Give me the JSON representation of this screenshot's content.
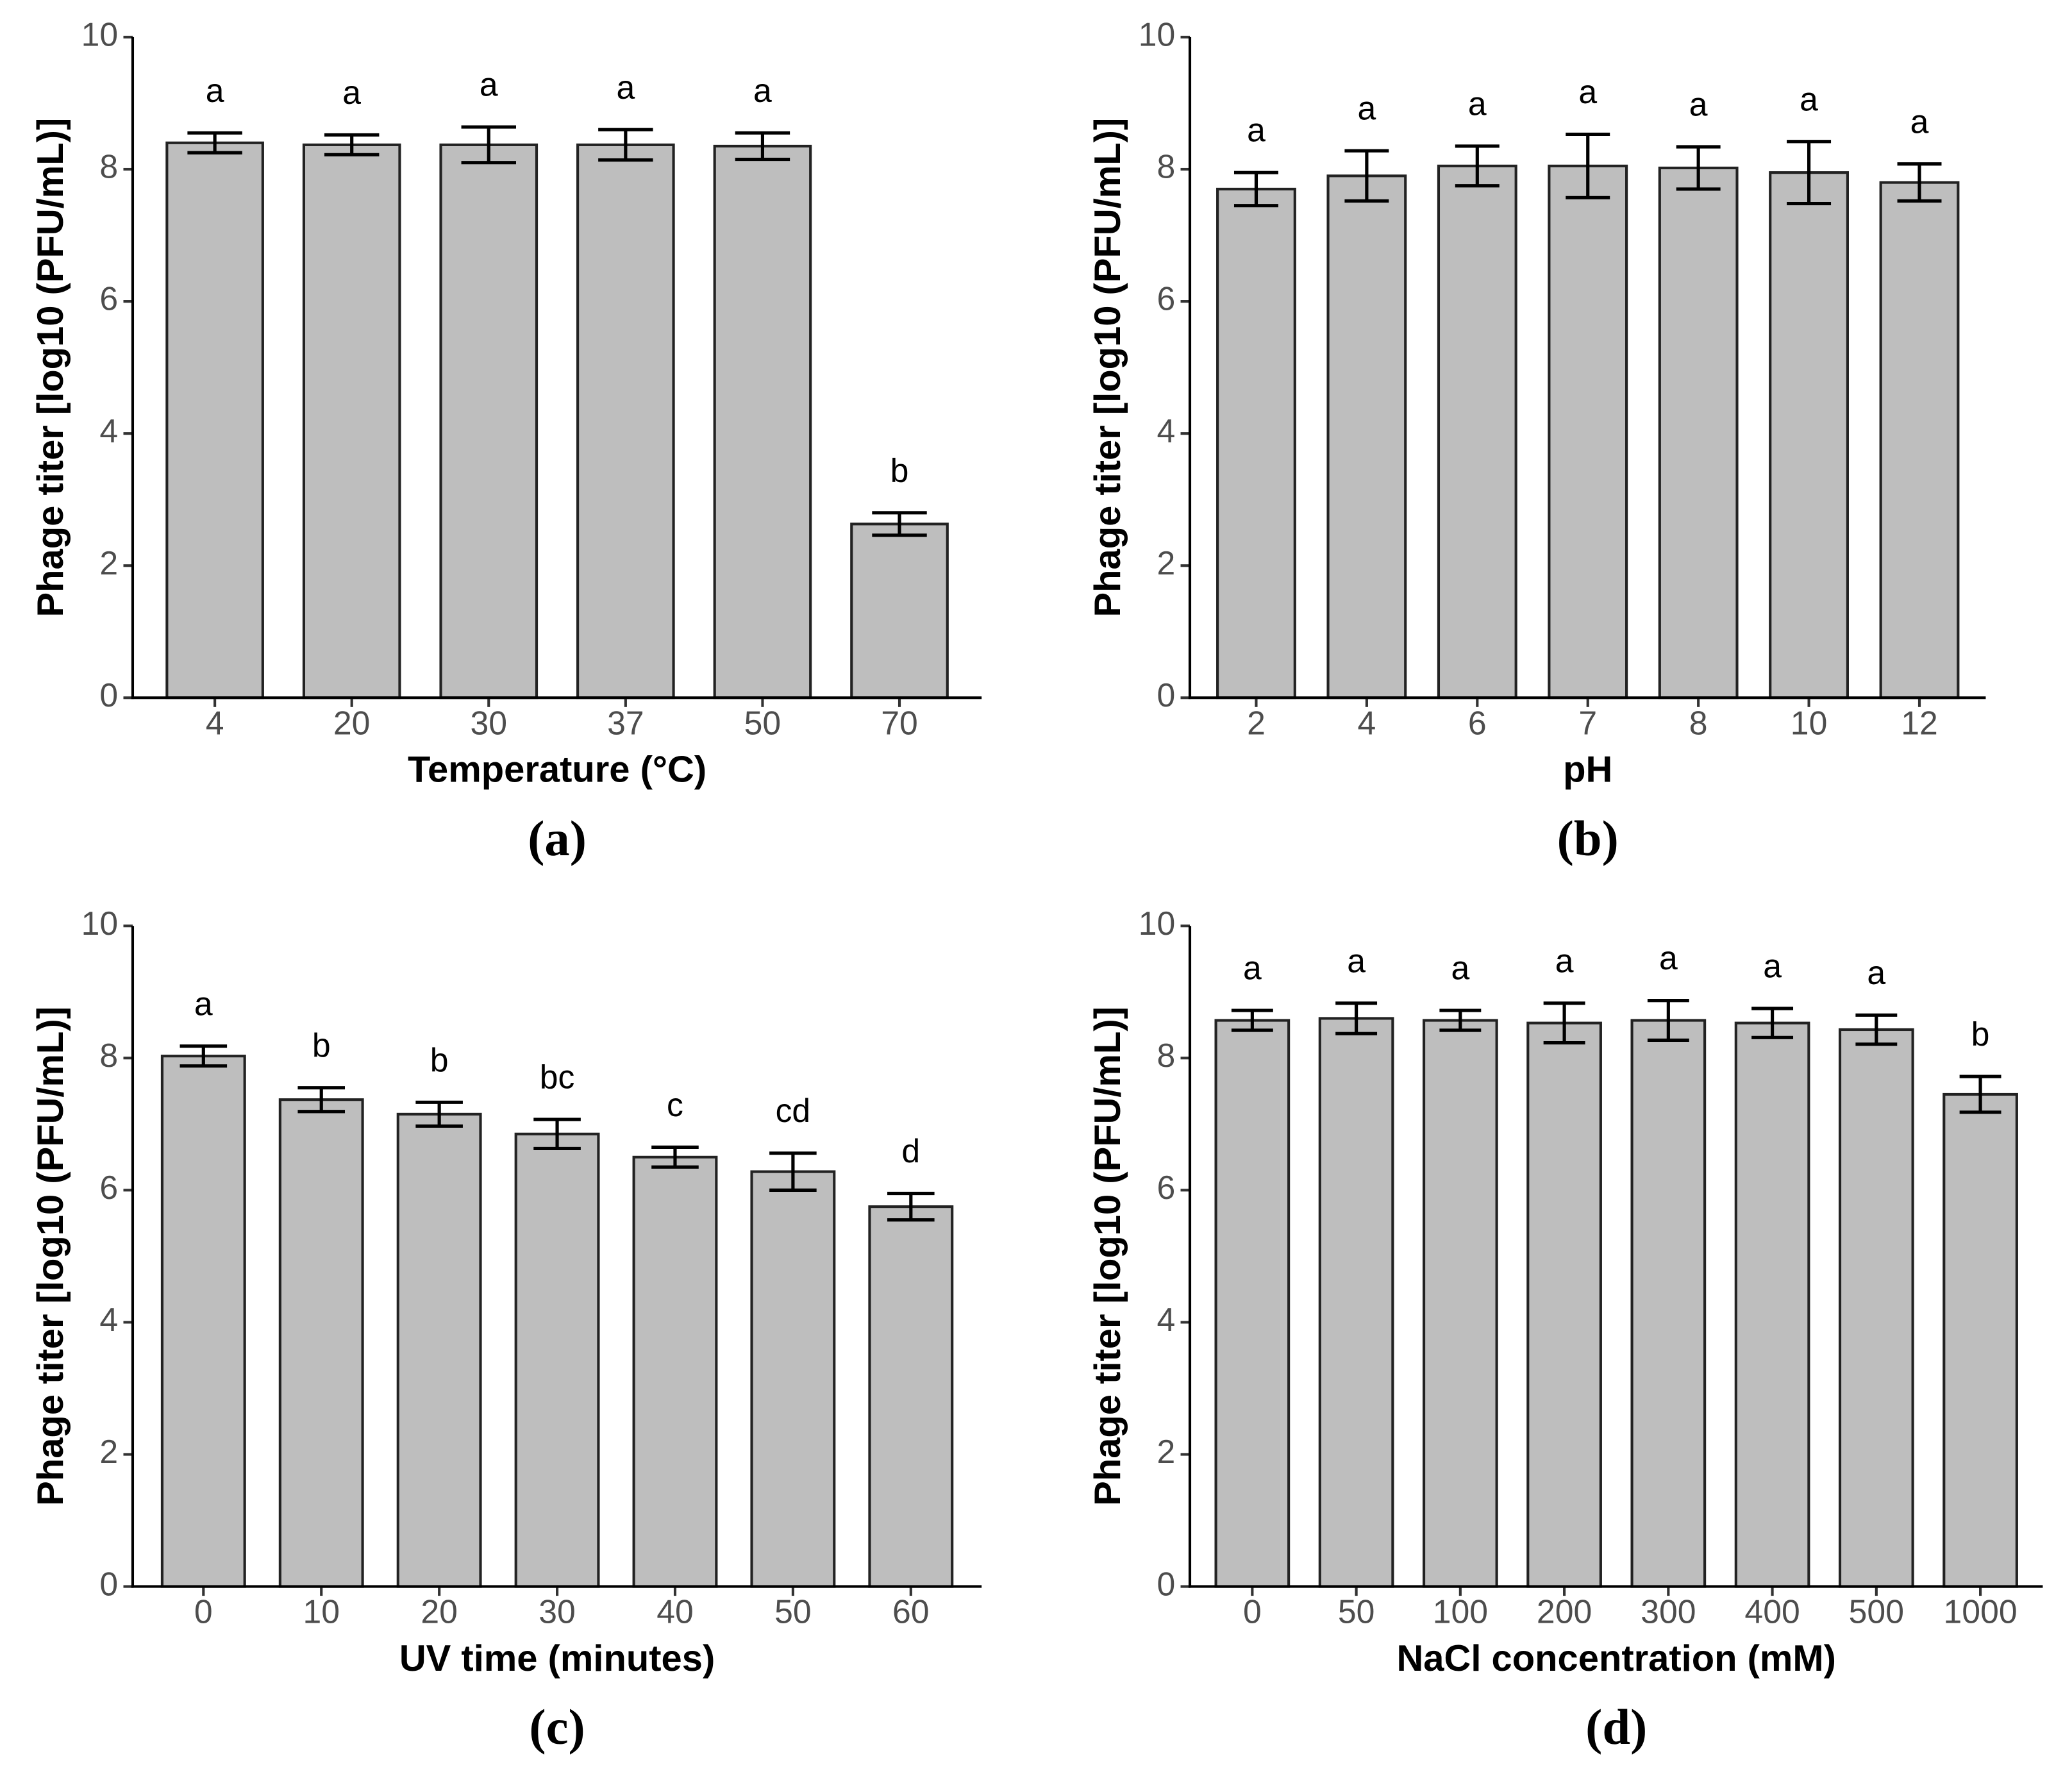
{
  "chart_data": [
    {
      "type": "bar",
      "panel_label": "(a)",
      "x_label": "Temperature (°C)",
      "y_label": "Phage titer [log10 (PFU/mL)]",
      "categories": [
        "4",
        "20",
        "30",
        "37",
        "50",
        "70"
      ],
      "values": [
        8.4,
        8.37,
        8.37,
        8.37,
        8.35,
        2.63
      ],
      "errors": [
        0.15,
        0.15,
        0.27,
        0.23,
        0.2,
        0.17
      ],
      "annotations": [
        "a",
        "a",
        "a",
        "a",
        "a",
        "b"
      ],
      "color": "#bebebe",
      "ylim": [
        0,
        10
      ],
      "yticks": [
        0,
        2,
        4,
        6,
        8,
        10
      ]
    },
    {
      "type": "bar",
      "panel_label": "(b)",
      "x_label": "pH",
      "y_label": "Phage titer [log10 (PFU/mL)]",
      "categories": [
        "2",
        "4",
        "6",
        "7",
        "8",
        "10",
        "12"
      ],
      "values": [
        7.7,
        7.9,
        8.05,
        8.05,
        8.02,
        7.95,
        7.8
      ],
      "errors": [
        0.25,
        0.38,
        0.3,
        0.48,
        0.32,
        0.47,
        0.28
      ],
      "annotations": [
        "a",
        "a",
        "a",
        "a",
        "a",
        "a",
        "a"
      ],
      "color": "#bebebe",
      "ylim": [
        0,
        10
      ],
      "yticks": [
        0,
        2,
        4,
        6,
        8,
        10
      ]
    },
    {
      "type": "bar",
      "panel_label": "(c)",
      "x_label": "UV time (minutes)",
      "y_label": "Phage titer [log10 (PFU/mL)]",
      "categories": [
        "0",
        "10",
        "20",
        "30",
        "40",
        "50",
        "60"
      ],
      "values": [
        8.03,
        7.37,
        7.15,
        6.85,
        6.5,
        6.28,
        5.75
      ],
      "errors": [
        0.15,
        0.18,
        0.18,
        0.22,
        0.15,
        0.28,
        0.2
      ],
      "annotations": [
        "a",
        "b",
        "b",
        "bc",
        "c",
        "cd",
        "d"
      ],
      "color": "#bebebe",
      "ylim": [
        0,
        10
      ],
      "yticks": [
        0,
        2,
        4,
        6,
        8,
        10
      ]
    },
    {
      "type": "bar",
      "panel_label": "(d)",
      "x_label": "NaCl concentration (mM)",
      "y_label": "Phage titer [log10 (PFU/mL)]",
      "categories": [
        "0",
        "50",
        "100",
        "200",
        "300",
        "400",
        "500",
        "1000"
      ],
      "values": [
        8.57,
        8.6,
        8.57,
        8.53,
        8.57,
        8.53,
        8.43,
        7.45
      ],
      "errors": [
        0.15,
        0.23,
        0.15,
        0.3,
        0.3,
        0.22,
        0.22,
        0.27
      ],
      "annotations": [
        "a",
        "a",
        "a",
        "a",
        "a",
        "a",
        "a",
        "b"
      ],
      "color": "#bebebe",
      "ylim": [
        0,
        10
      ],
      "yticks": [
        0,
        2,
        4,
        6,
        8,
        10
      ]
    }
  ]
}
